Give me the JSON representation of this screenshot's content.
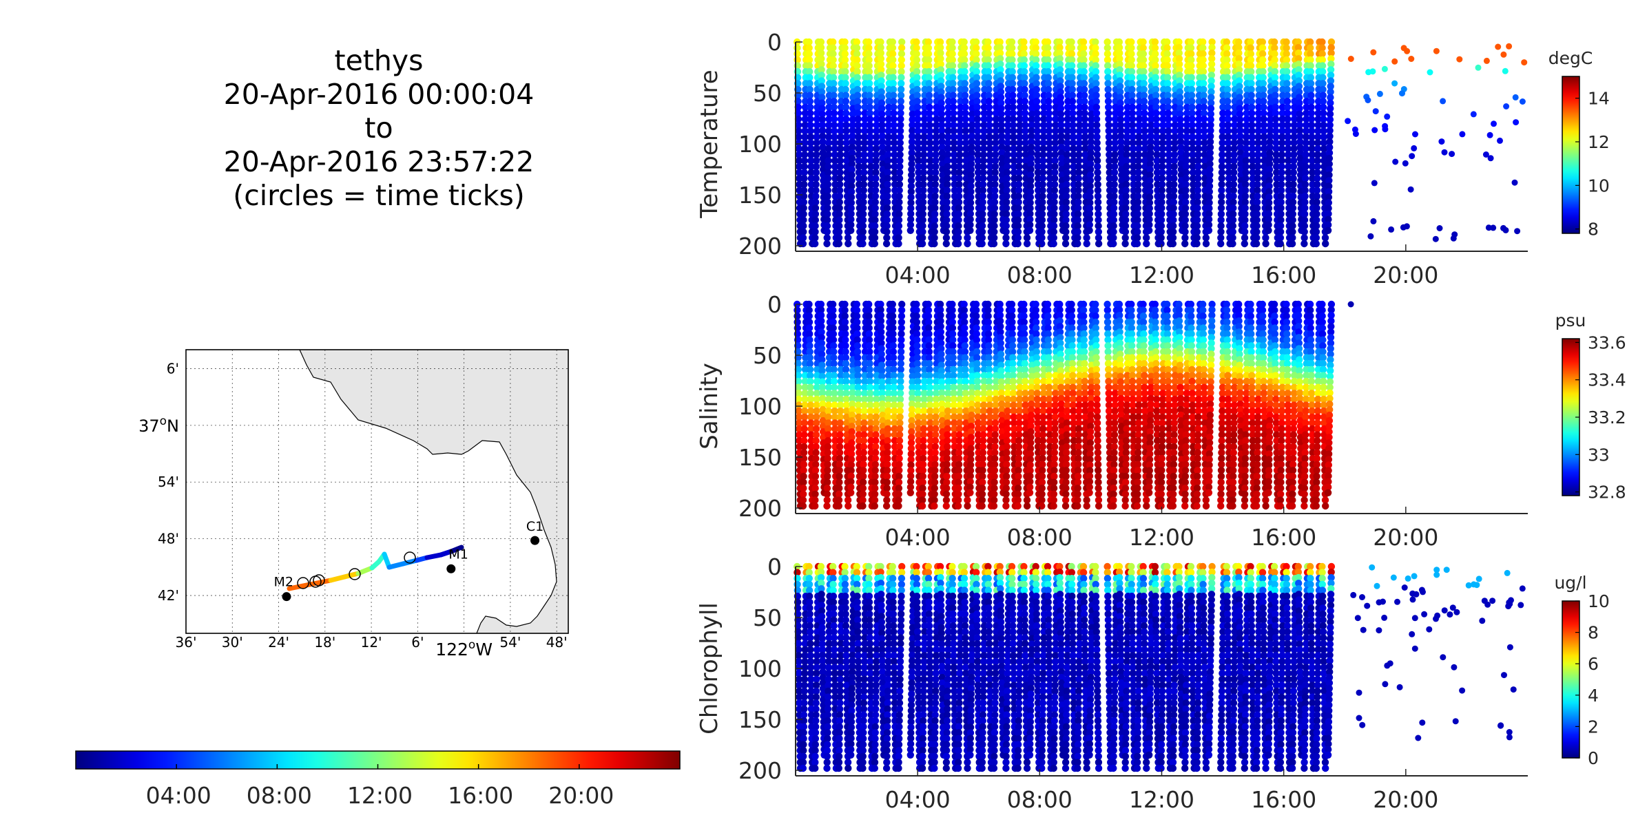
{
  "header": {
    "platform": "tethys",
    "start": "20-Apr-2016 00:00:04",
    "to": "to",
    "end": "20-Apr-2016 23:57:22",
    "note": "(circles = time ticks)"
  },
  "map": {
    "lat_ticks": [
      "6'",
      "37°N",
      "54'",
      "48'",
      "42'"
    ],
    "lon_ticks": [
      "36'",
      "30'",
      "24'",
      "18'",
      "12'",
      "6'",
      "122°W",
      "54'",
      "48'"
    ],
    "stations": [
      {
        "name": "M2",
        "lon": -122.383,
        "lat": 36.698
      },
      {
        "name": "M1",
        "lon": -122.028,
        "lat": 36.747
      },
      {
        "name": "C1",
        "lon": -121.847,
        "lat": 36.797
      }
    ],
    "track_colors": [
      "#ff6600",
      "#ffcc00",
      "#aaff55",
      "#33ffcc",
      "#00ccff",
      "#0088ff",
      "#0044ff",
      "#0000cc",
      "#00008f"
    ]
  },
  "time_colorbar": {
    "ticks": [
      "04:00",
      "08:00",
      "12:00",
      "16:00",
      "20:00"
    ],
    "colormap": "jet"
  },
  "chart_data": [
    {
      "type": "scatter",
      "ylabel": "Temperature",
      "units": "degC",
      "yticks": [
        "0",
        "50",
        "100",
        "150",
        "200"
      ],
      "xticks": [
        "04:00",
        "08:00",
        "12:00",
        "16:00",
        "20:00"
      ],
      "xlim": [
        "00:00",
        "24:00"
      ],
      "ylim": [
        0,
        200
      ],
      "y_reversed": true,
      "color_range": [
        7.8,
        15
      ],
      "color_ticks": [
        "14",
        "12",
        "10",
        "8"
      ],
      "color_tick_values": [
        14,
        12,
        10,
        8
      ]
    },
    {
      "type": "scatter",
      "ylabel": "Salinity",
      "units": "psu",
      "yticks": [
        "0",
        "50",
        "100",
        "150",
        "200"
      ],
      "xticks": [
        "04:00",
        "08:00",
        "12:00",
        "16:00",
        "20:00"
      ],
      "xlim": [
        "00:00",
        "24:00"
      ],
      "ylim": [
        0,
        200
      ],
      "y_reversed": true,
      "color_range": [
        32.78,
        33.62
      ],
      "color_ticks": [
        "33.6",
        "33.4",
        "33.2",
        "33",
        "32.8"
      ],
      "color_tick_values": [
        33.6,
        33.4,
        33.2,
        33.0,
        32.8
      ]
    },
    {
      "type": "scatter",
      "ylabel": "Chlorophyll",
      "units": "ug/l",
      "yticks": [
        "0",
        "50",
        "100",
        "150",
        "200"
      ],
      "xticks": [
        "04:00",
        "08:00",
        "12:00",
        "16:00",
        "20:00"
      ],
      "xlim": [
        "00:00",
        "24:00"
      ],
      "ylim": [
        0,
        200
      ],
      "y_reversed": true,
      "color_range": [
        0,
        10
      ],
      "color_ticks": [
        "10",
        "8",
        "6",
        "4",
        "2",
        "0"
      ],
      "color_tick_values": [
        10,
        8,
        6,
        4,
        2,
        0
      ]
    }
  ]
}
